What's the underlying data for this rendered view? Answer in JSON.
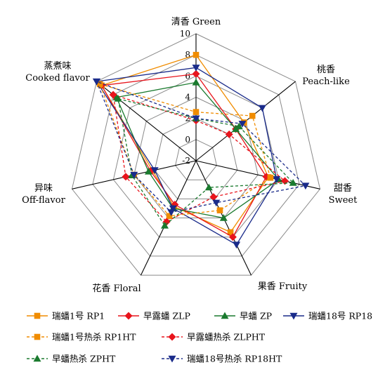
{
  "chart_data": {
    "type": "radar",
    "title": "",
    "axes": [
      {
        "zh": "清香",
        "en": "Green"
      },
      {
        "zh": "桃香",
        "en": "Peach-like"
      },
      {
        "zh": "甜香",
        "en": "Sweet"
      },
      {
        "zh": "果香",
        "en": "Fruity"
      },
      {
        "zh": "花香",
        "en": "Floral"
      },
      {
        "zh": "异味",
        "en": "Off-flavor"
      },
      {
        "zh": "蒸煮味",
        "en": "Cooked flavor"
      }
    ],
    "axis_label_lines": [
      [
        "清香 Green"
      ],
      [
        "桃香",
        "Peach-like"
      ],
      [
        "甜香",
        "Sweet"
      ],
      [
        "果香 Fruity"
      ],
      [
        "花香 Floral"
      ],
      [
        "异味",
        "Off-flavor"
      ],
      [
        "蒸煮味",
        "Cooked flavor"
      ]
    ],
    "rlim": [
      -2,
      10
    ],
    "ticks": [
      -2,
      0,
      2,
      4,
      6,
      8,
      10
    ],
    "grid": true,
    "legend_position": "bottom",
    "series": [
      {
        "name": "瑞蟠1号 RP1",
        "color": "#f08c00",
        "marker": "square",
        "dash": false,
        "values": [
          8.0,
          3.8,
          5.0,
          5.5,
          2.8,
          2.2,
          9.4
        ]
      },
      {
        "name": "早露蟠 ZLP",
        "color": "#e8141c",
        "marker": "diamond",
        "dash": false,
        "values": [
          6.2,
          2.8,
          4.8,
          6.0,
          2.6,
          2.4,
          9.4
        ]
      },
      {
        "name": "早蟠 ZP",
        "color": "#1a7a2e",
        "marker": "triangle",
        "dash": false,
        "values": [
          5.4,
          2.8,
          6.0,
          4.0,
          3.0,
          2.6,
          7.6
        ]
      },
      {
        "name": "瑞蟠18号 RP18",
        "color": "#1a2b8a",
        "marker": "invtriangle",
        "dash": false,
        "values": [
          6.8,
          6.0,
          5.8,
          6.8,
          3.0,
          2.0,
          10.0
        ]
      },
      {
        "name": "瑞蟠1号热杀 RP1HT",
        "color": "#f08c00",
        "marker": "square",
        "dash": true,
        "values": [
          2.6,
          4.8,
          5.2,
          3.2,
          3.8,
          4.0,
          9.6
        ]
      },
      {
        "name": "早露蟠热杀 ZLPHT",
        "color": "#e8141c",
        "marker": "diamond",
        "dash": true,
        "values": [
          1.8,
          2.0,
          6.6,
          1.8,
          4.4,
          4.8,
          8.0
        ]
      },
      {
        "name": "早蟠热杀 ZPHT",
        "color": "#1a7a2e",
        "marker": "triangle",
        "dash": true,
        "values": [
          2.0,
          3.2,
          7.4,
          0.8,
          4.8,
          4.2,
          7.4
        ]
      },
      {
        "name": "瑞蟠18号热杀 RP18HT",
        "color": "#1a2b8a",
        "marker": "invtriangle",
        "dash": true,
        "values": [
          2.0,
          3.6,
          8.6,
          2.4,
          3.4,
          4.0,
          10.0
        ]
      }
    ]
  }
}
